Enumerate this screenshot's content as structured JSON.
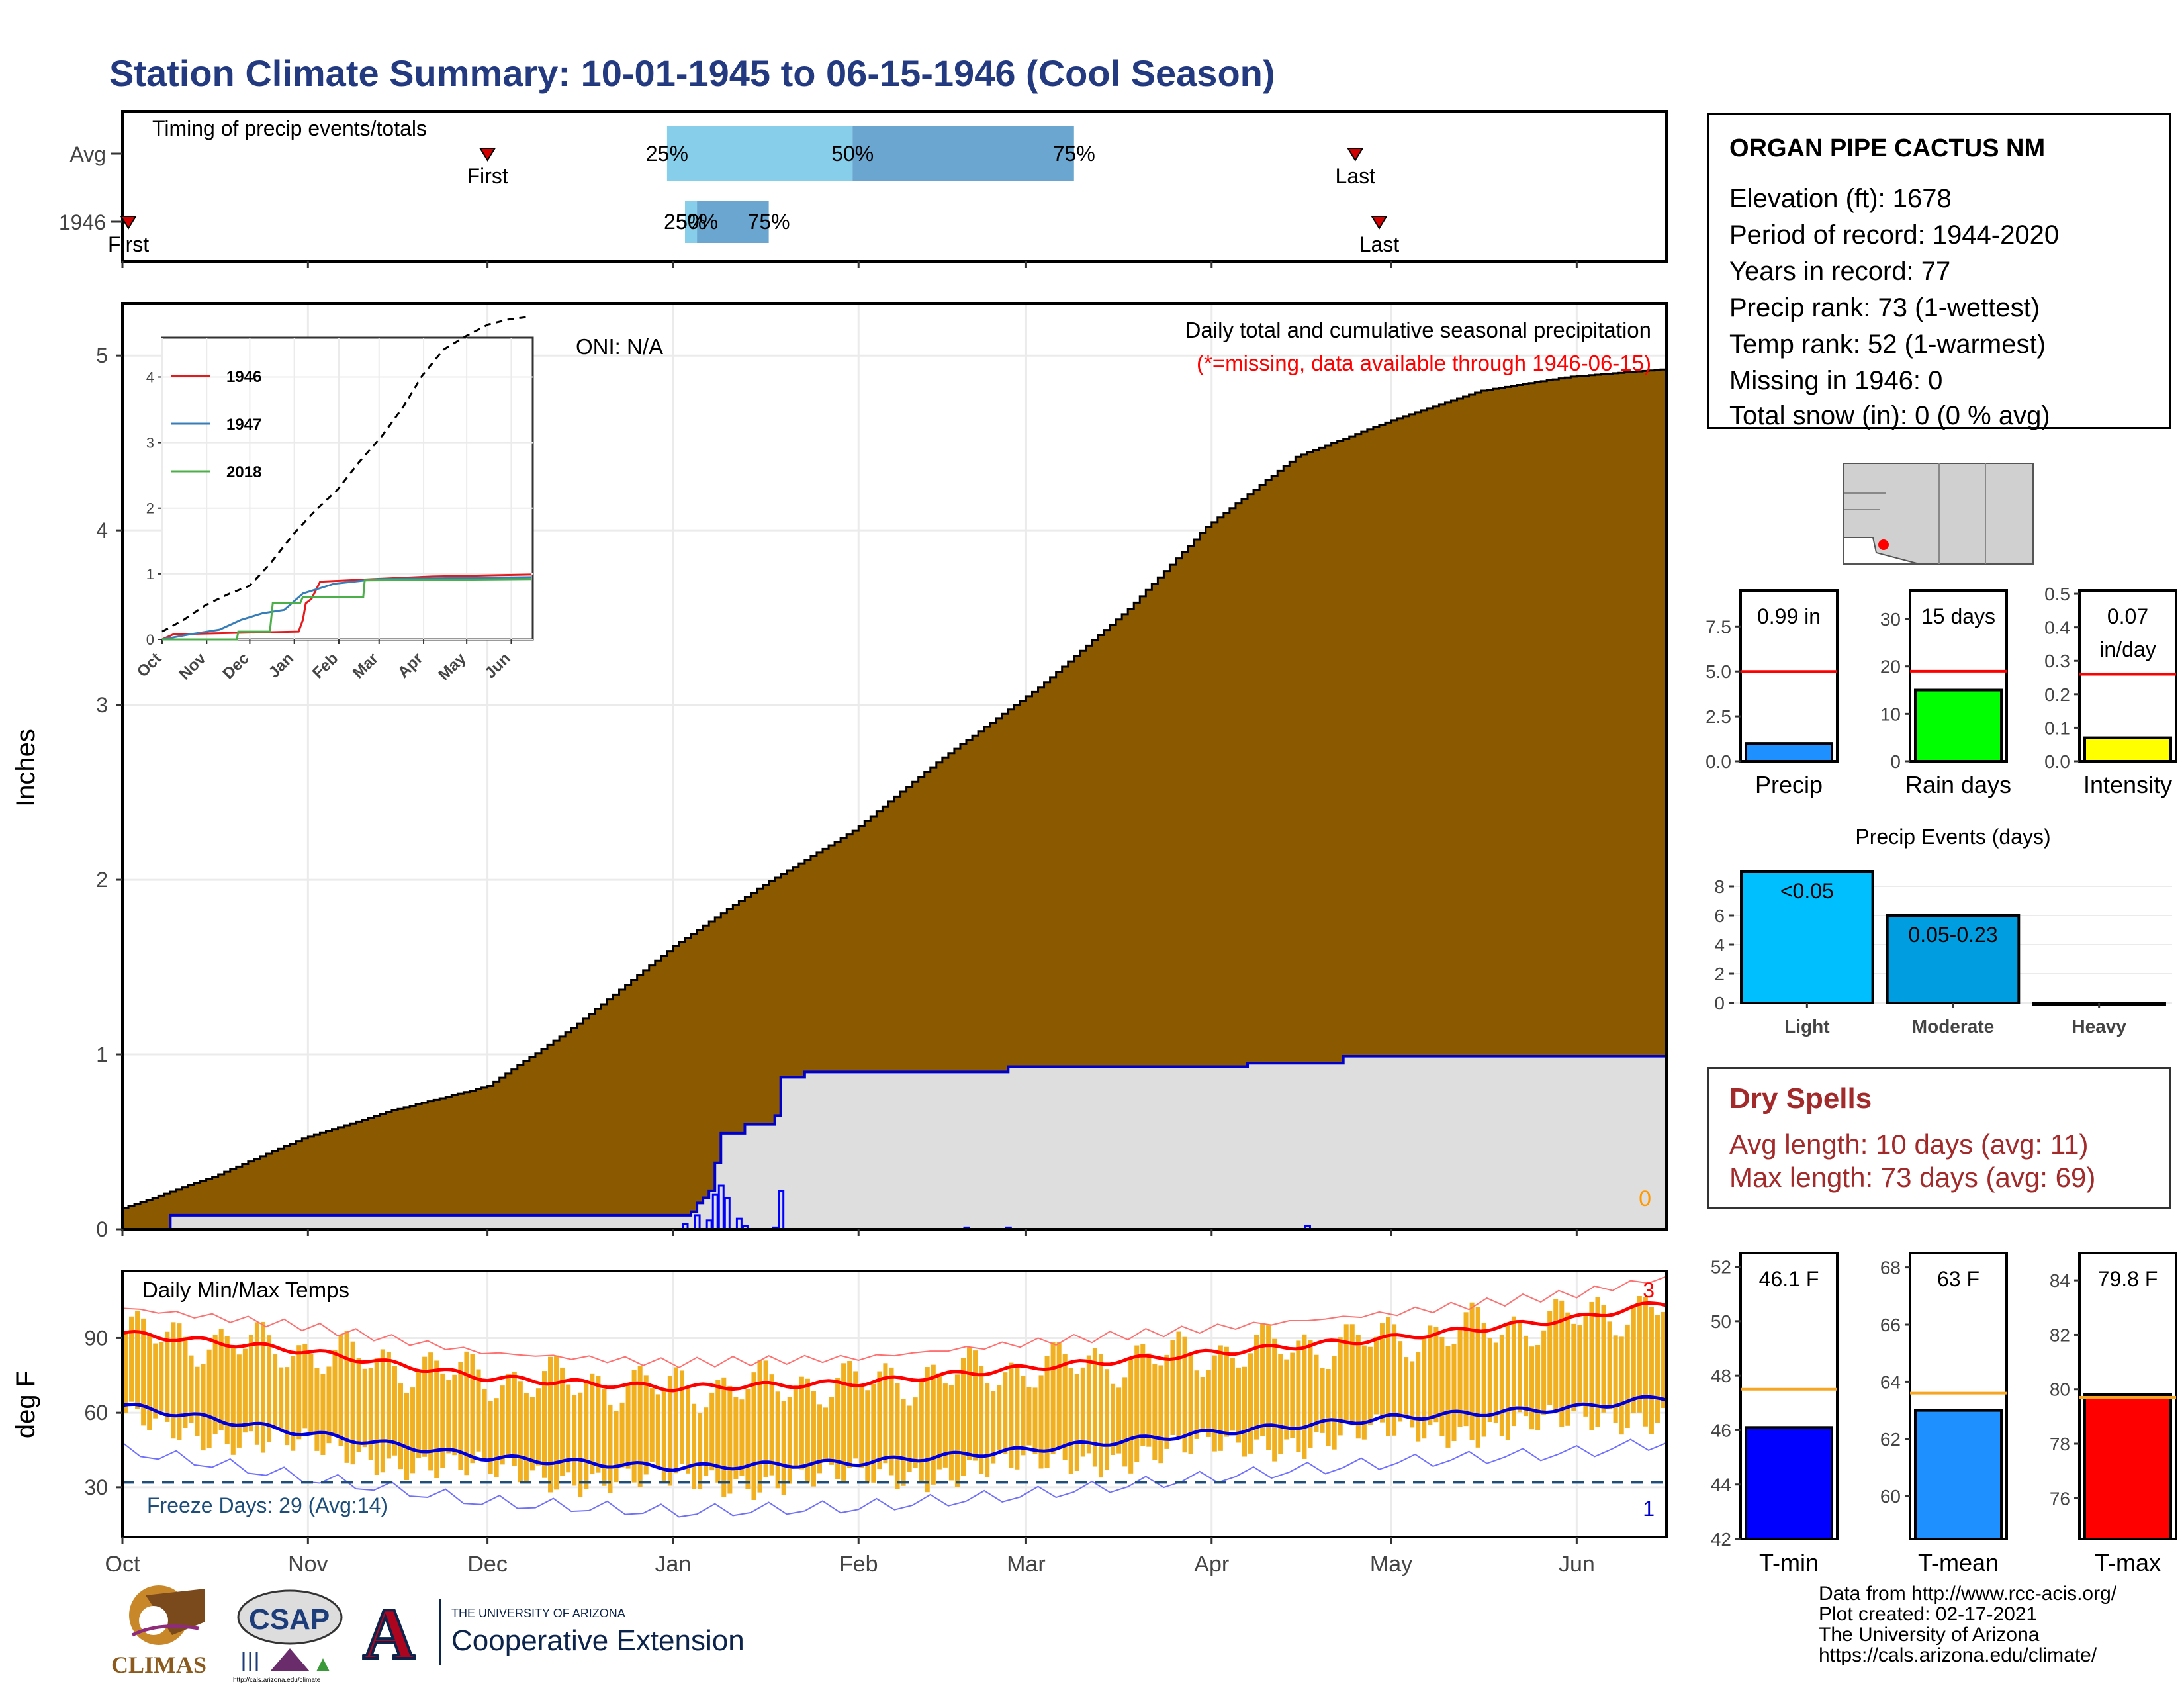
{
  "title": "Station Climate Summary: 10-01-1945 to 06-15-1946 (Cool Season)",
  "station": {
    "name": "ORGAN PIPE CACTUS NM",
    "lines": [
      "Elevation (ft): 1678",
      "Period of record: 1944-2020",
      "Years in record: 77",
      "Precip rank: 73 (1-wettest)",
      "Temp rank: 52 (1-warmest)",
      "Missing in 1946: 0",
      "Total snow (in): 0 (0 % avg)"
    ]
  },
  "dry_spells": {
    "title": "Dry Spells",
    "avg": "Avg length: 10 days (avg: 11)",
    "max": "Max length: 73 days (avg: 69)"
  },
  "credits": [
    "Data from http://www.rcc-acis.org/",
    "Plot created: 02-17-2021",
    "The University of Arizona",
    "https://cals.arizona.edu/climate/"
  ],
  "logos": {
    "climas": "CLIMAS",
    "csap": "CSAP",
    "csap_url": "http://cals.arizona.edu/climate",
    "ua_line1": "THE UNIVERSITY OF ARIZONA",
    "ua_line2": "Cooperative Extension",
    "ua_mark": "A"
  },
  "colors": {
    "title": "#233a80",
    "cumulative_avg": "#8b5a00",
    "cumulative_season": "#dedede",
    "season_line": "#0000cc",
    "temp_bars": "#f0b020",
    "avg_max": "#ff0000",
    "avg_min": "#0000dd",
    "dry_spell": "#a32a2a"
  },
  "chart_data": [
    {
      "type": "timing",
      "title": "Timing of precip events/totals",
      "rows": [
        {
          "label": "Avg",
          "first": "2025-12-01",
          "q25": "2025-12-31",
          "q50": "2026-01-31",
          "q75": "2026-03-09",
          "last": "2026-04-25",
          "first_label": "First",
          "last_label": "Last",
          "q25_label": "25%",
          "q50_label": "50%",
          "q75_label": "75%"
        },
        {
          "label": "1946",
          "first": "2025-10-02",
          "q25": "2026-01-03",
          "q50": "2026-01-05",
          "q75": "2026-01-17",
          "last": "2026-04-29",
          "first_label": "First",
          "last_label": "Last",
          "q25_label": "25%",
          "q50_label": "50%",
          "q75_label": "75%"
        }
      ]
    },
    {
      "type": "area",
      "title": "Daily total and cumulative seasonal precipitation",
      "subtitle": "(*=missing, data available through 1946-06-15)",
      "annotation": "ONI: N/A",
      "missing_count": "0",
      "ylabel": "Inches",
      "ylim": [
        0,
        5.3
      ],
      "yticks": [
        "0",
        "1",
        "2",
        "3",
        "4",
        "5"
      ],
      "xticks": [
        "Oct",
        "Nov",
        "Dec",
        "Jan",
        "Feb",
        "Mar",
        "Apr",
        "May",
        "Jun"
      ],
      "avg_cumulative": {
        "name": "Average cumulative",
        "x_day": [
          0,
          15,
          30,
          45,
          61,
          75,
          92,
          106,
          122,
          137,
          153,
          168,
          181,
          196,
          212,
          227,
          242,
          257
        ],
        "y": [
          0.12,
          0.3,
          0.52,
          0.68,
          0.82,
          1.15,
          1.62,
          1.95,
          2.28,
          2.7,
          3.1,
          3.55,
          4.02,
          4.42,
          4.63,
          4.8,
          4.88,
          4.92
        ]
      },
      "season_cumulative": {
        "name": "1946 cumulative",
        "x_day": [
          0,
          7,
          8,
          94,
          95,
          96,
          97,
          98,
          99,
          100,
          104,
          109,
          110,
          114,
          148,
          188,
          204,
          256
        ],
        "y": [
          0,
          0,
          0.08,
          0.08,
          0.1,
          0.15,
          0.18,
          0.22,
          0.38,
          0.55,
          0.6,
          0.65,
          0.87,
          0.9,
          0.93,
          0.95,
          0.99,
          0.99
        ]
      },
      "daily": {
        "name": "Daily precip",
        "x_day": [
          94,
          96,
          98,
          99,
          100,
          101,
          103,
          104,
          109,
          110,
          141,
          148,
          198
        ],
        "y": [
          0.03,
          0.08,
          0.05,
          0.2,
          0.25,
          0.18,
          0.06,
          0.02,
          0.01,
          0.22,
          0.01,
          0.01,
          0.02
        ]
      }
    },
    {
      "type": "line",
      "title": "Inset: cumulative precipitation",
      "ylim": [
        0,
        4.6
      ],
      "yticks": [
        "0",
        "1",
        "2",
        "3",
        "4"
      ],
      "xticks": [
        "Oct",
        "Nov",
        "Dec",
        "Jan",
        "Feb",
        "Mar",
        "Apr",
        "May",
        "Jun"
      ],
      "legend_position": "top-left",
      "series": [
        {
          "name": "",
          "style": "dashed",
          "color": "#000000",
          "x_day": [
            0,
            15,
            30,
            45,
            61,
            75,
            92,
            106,
            122,
            137,
            153,
            168,
            181,
            196,
            212,
            227,
            242,
            257
          ],
          "y": [
            0.12,
            0.3,
            0.52,
            0.68,
            0.82,
            1.15,
            1.62,
            1.95,
            2.28,
            2.7,
            3.1,
            3.55,
            4.02,
            4.42,
            4.63,
            4.8,
            4.88,
            4.92
          ]
        },
        {
          "name": "1946",
          "color": "#e41a1c",
          "x_day": [
            0,
            8,
            95,
            98,
            100,
            104,
            110,
            148,
            188,
            257
          ],
          "y": [
            0,
            0.08,
            0.12,
            0.3,
            0.55,
            0.62,
            0.88,
            0.92,
            0.96,
            0.99
          ]
        },
        {
          "name": "1947",
          "color": "#377eb8",
          "x_day": [
            0,
            20,
            40,
            55,
            70,
            85,
            98,
            120,
            150,
            257
          ],
          "y": [
            0,
            0.08,
            0.15,
            0.3,
            0.4,
            0.45,
            0.7,
            0.85,
            0.92,
            0.95
          ]
        },
        {
          "name": "2018",
          "color": "#4daf4a",
          "x_day": [
            0,
            52,
            53,
            75,
            77,
            96,
            98,
            140,
            141,
            257
          ],
          "y": [
            0,
            0,
            0.12,
            0.12,
            0.55,
            0.55,
            0.65,
            0.65,
            0.9,
            0.92
          ]
        }
      ]
    },
    {
      "type": "bar",
      "title": "Daily Min/Max Temps",
      "ylabel": "deg F",
      "ylim": [
        10,
        117
      ],
      "yticks": [
        "30",
        "60",
        "90"
      ],
      "xticks": [
        "Oct",
        "Nov",
        "Dec",
        "Jan",
        "Feb",
        "Mar",
        "Apr",
        "May",
        "Jun"
      ],
      "freeze_label": "Freeze Days: 29 (Avg:14)",
      "freeze_line": 32,
      "record_high_count": "3",
      "record_low_count": "1",
      "avg_max": {
        "x_day": [
          0,
          30,
          61,
          92,
          123,
          151,
          182,
          212,
          243,
          257
        ],
        "y": [
          92,
          85,
          74,
          70,
          72,
          78,
          84,
          90,
          98,
          104
        ]
      },
      "avg_min": {
        "x_day": [
          0,
          30,
          61,
          92,
          123,
          151,
          182,
          212,
          243,
          257
        ],
        "y": [
          63,
          52,
          42,
          38,
          40,
          45,
          52,
          58,
          62,
          66
        ]
      }
    },
    {
      "type": "bar",
      "title": "Precip",
      "value_label": "0.99 in",
      "value": 0.99,
      "avg": 5.0,
      "ylim": [
        0,
        9.5
      ],
      "yticks": [
        "0.0",
        "2.5",
        "5.0",
        "7.5"
      ],
      "color": "#1e90ff"
    },
    {
      "type": "bar",
      "title": "Rain days",
      "value_label": "15 days",
      "value": 15,
      "avg": 19,
      "ylim": [
        0,
        36
      ],
      "yticks": [
        "0",
        "10",
        "20",
        "30"
      ],
      "color": "#00ff00"
    },
    {
      "type": "bar",
      "title": "Intensity",
      "value_label": "0.07",
      "value_label2": "in/day",
      "value": 0.07,
      "avg": 0.26,
      "ylim": [
        0,
        0.51
      ],
      "yticks": [
        "0.0",
        "0.1",
        "0.2",
        "0.3",
        "0.4",
        "0.5"
      ],
      "color": "#ffff00"
    },
    {
      "type": "bar",
      "title": "Precip Events (days)",
      "categories": [
        "Light",
        "Moderate",
        "Heavy"
      ],
      "values": [
        9,
        6,
        0
      ],
      "bar_labels": [
        "<0.05",
        "0.05-0.23",
        ""
      ],
      "ylim": [
        0,
        9.5
      ],
      "yticks": [
        "0",
        "2",
        "4",
        "6",
        "8"
      ],
      "colors": [
        "#00bfff",
        "#009ee0",
        "#0077b6"
      ]
    },
    {
      "type": "bar",
      "title": "T-min",
      "value_label": "46.1 F",
      "value": 46.1,
      "avg": 47.5,
      "ylim": [
        42,
        52.5
      ],
      "yticks": [
        "42",
        "44",
        "46",
        "48",
        "50",
        "52"
      ],
      "color": "#0000ff"
    },
    {
      "type": "bar",
      "title": "T-mean",
      "value_label": "63 F",
      "value": 63,
      "avg": 63.6,
      "ylim": [
        58.5,
        68.5
      ],
      "yticks": [
        "60",
        "62",
        "64",
        "66",
        "68"
      ],
      "color": "#1e90ff"
    },
    {
      "type": "bar",
      "title": "T-max",
      "value_label": "79.8 F",
      "value": 79.8,
      "avg": 79.7,
      "ylim": [
        74.5,
        85
      ],
      "yticks": [
        "76",
        "78",
        "80",
        "82",
        "84"
      ],
      "color": "#ff0000"
    }
  ]
}
